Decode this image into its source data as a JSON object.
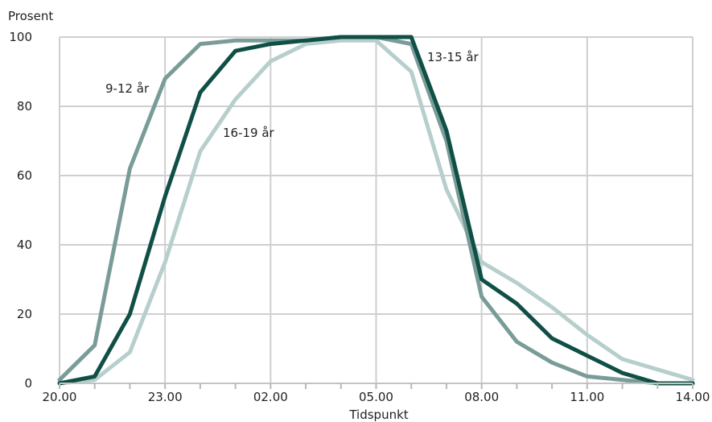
{
  "chart_data": {
    "type": "line",
    "title": "",
    "ylabel": "Prosent",
    "xlabel": "Tidspunkt",
    "x_tick_labels": [
      "20.00",
      "23.00",
      "02.00",
      "05.00",
      "08.00",
      "11.00",
      "14.00"
    ],
    "y_ticks": [
      0,
      20,
      40,
      60,
      80,
      100
    ],
    "ylim": [
      0,
      100
    ],
    "grid": true,
    "legend": "none (series labeled inline on chart)",
    "x_hours": [
      20,
      21,
      22,
      23,
      24,
      25,
      26,
      27,
      28,
      29,
      30,
      31,
      32,
      33,
      34,
      35,
      36,
      37,
      38
    ],
    "series": [
      {
        "name": "9-12 år",
        "color": "#7a9c98",
        "values": [
          1,
          11,
          62,
          88,
          98,
          99,
          99,
          99,
          100,
          100,
          98,
          70,
          25,
          12,
          6,
          2,
          1,
          0,
          0
        ]
      },
      {
        "name": "13-15 år",
        "color": "#0f4f45",
        "values": [
          0,
          2,
          20,
          54,
          84,
          96,
          98,
          99,
          100,
          100,
          100,
          73,
          30,
          23,
          13,
          8,
          3,
          0,
          0
        ]
      },
      {
        "name": "16-19 år",
        "color": "#b7cfcc",
        "values": [
          0,
          1,
          9,
          35,
          67,
          82,
          93,
          98,
          99,
          99,
          90,
          56,
          35,
          29,
          22,
          14,
          7,
          4,
          1
        ]
      }
    ]
  }
}
